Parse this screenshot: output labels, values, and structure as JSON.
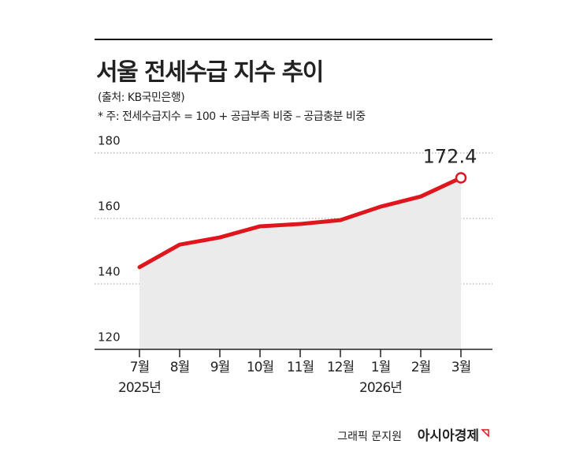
{
  "chart_data": {
    "type": "line",
    "title": "서울 전세수급 지수 추이",
    "source": "(출처: KB국민은행)",
    "note": "* 주: 전세수급지수 = 100 + 공급부족 비중 – 공급충분 비중",
    "categories": [
      "7월",
      "8월",
      "9월",
      "10월",
      "11월",
      "12월",
      "1월",
      "2월",
      "3월"
    ],
    "year_labels": [
      "2025년",
      null,
      null,
      null,
      null,
      null,
      "2026년",
      null,
      null
    ],
    "series": [
      {
        "name": "서울 전세수급 지수",
        "color": "#e0161e",
        "values": [
          145.1,
          152.0,
          154.2,
          157.6,
          158.3,
          159.5,
          163.6,
          166.7,
          172.4
        ]
      }
    ],
    "ylim": [
      120,
      180
    ],
    "yticks": [
      120,
      140,
      160,
      180
    ],
    "grid": true,
    "credit": "그래픽 문지원",
    "publisher": "아시아경제"
  }
}
